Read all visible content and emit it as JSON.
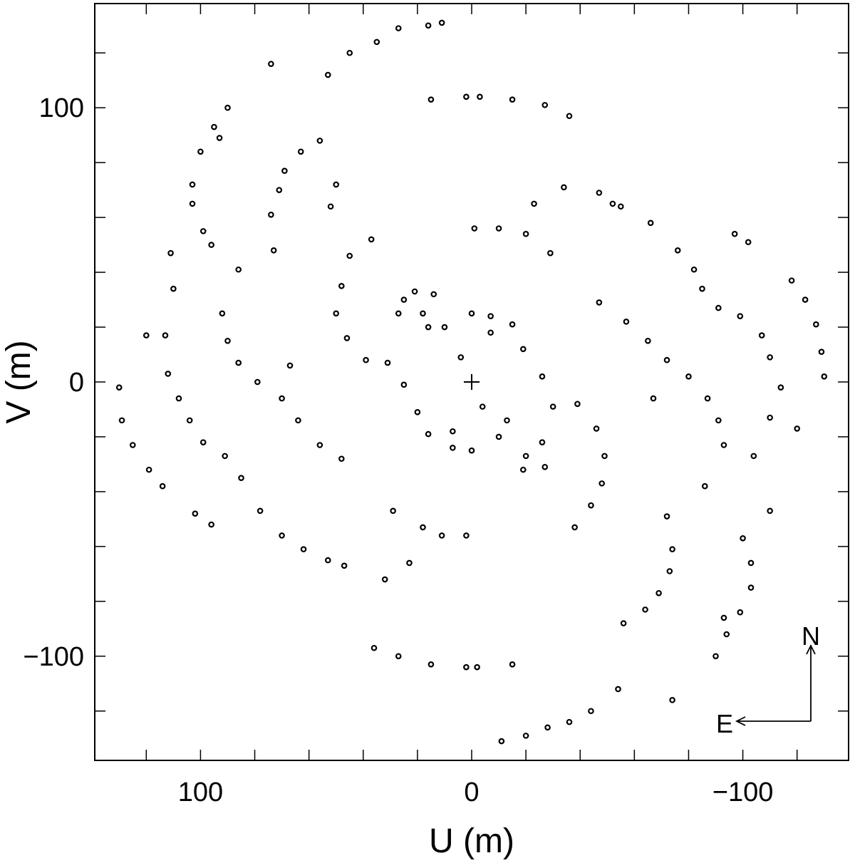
{
  "chart_data": {
    "type": "scatter",
    "xlabel": "U (m)",
    "ylabel": "V (m)",
    "color": "#000000",
    "xlim": [
      139,
      -139
    ],
    "ylim": [
      -138,
      138
    ],
    "xticks": [
      100,
      0,
      {
        "value": -100,
        "label": "−100"
      }
    ],
    "yticks": [
      {
        "value": -100,
        "label": "−100"
      },
      0,
      100
    ],
    "xminor_ticks": [
      120,
      80,
      60,
      40,
      20,
      -20,
      -40,
      -60,
      -80,
      -120
    ],
    "yminor_ticks": [
      -120,
      -80,
      -60,
      -40,
      -20,
      20,
      40,
      60,
      80,
      120
    ],
    "annotations": [
      "N",
      "E"
    ],
    "x": [
      53,
      45,
      35,
      27,
      16,
      11,
      -11,
      -20,
      -28,
      -36,
      -44,
      -54,
      74,
      -74,
      15,
      2,
      -3,
      -15,
      -27,
      -36,
      36,
      27,
      15,
      2,
      -2,
      -15,
      90,
      95,
      100,
      103,
      103,
      99,
      96,
      -100,
      -103,
      -103,
      -99,
      -94,
      -90,
      93,
      -93,
      73,
      74,
      71,
      69,
      63,
      56,
      -56,
      -64,
      -69,
      -73,
      -74,
      -72,
      -130,
      -129,
      -127,
      -123,
      -118,
      -102,
      -97,
      130,
      129,
      125,
      119,
      114,
      102,
      96,
      111,
      -110,
      113,
      112,
      108,
      104,
      99,
      91,
      -114,
      -110,
      -107,
      -99,
      -91,
      86,
      92,
      90,
      86,
      79,
      70,
      64,
      56,
      48,
      -47,
      -57,
      -65,
      -72,
      -80,
      -87,
      -91,
      -93,
      85,
      78,
      70,
      62,
      53,
      47,
      -47,
      -55,
      -66,
      -76,
      -82,
      -85,
      37,
      45,
      48,
      50,
      46,
      39,
      -39,
      -46,
      -49,
      -48,
      -44,
      -38,
      -1,
      -10,
      -20,
      -29,
      29,
      18,
      11,
      2,
      -23,
      -34,
      -52,
      23,
      32,
      27,
      25,
      21,
      14,
      18,
      16,
      10,
      4,
      -4,
      -10,
      -13,
      -20,
      -27,
      -26,
      -19,
      -7,
      -15,
      -19,
      -26,
      -30,
      7,
      16,
      20,
      25,
      31,
      0,
      0,
      -7,
      7,
      67,
      -67,
      -86,
      -104,
      -110,
      -120,
      110,
      120,
      52,
      50
    ],
    "y": [
      112,
      120,
      124,
      129,
      130,
      131,
      -131,
      -129,
      -126,
      -124,
      -120,
      -112,
      116,
      -116,
      103,
      104,
      104,
      103,
      101,
      97,
      -97,
      -100,
      -103,
      -104,
      -104,
      -103,
      100,
      93,
      84,
      72,
      65,
      55,
      50,
      -57,
      -66,
      -75,
      -84,
      -92,
      -100,
      89,
      -86,
      48,
      61,
      70,
      77,
      84,
      88,
      -88,
      -83,
      -77,
      -69,
      -61,
      -49,
      2,
      11,
      21,
      30,
      37,
      51,
      54,
      -2,
      -14,
      -23,
      -32,
      -38,
      -48,
      -52,
      47,
      -47,
      17,
      3,
      -6,
      -14,
      -22,
      -27,
      -2,
      9,
      17,
      24,
      27,
      41,
      25,
      15,
      7,
      0,
      -6,
      -14,
      -23,
      -28,
      29,
      22,
      15,
      8,
      2,
      -6,
      -14,
      -23,
      -35,
      -47,
      -56,
      -61,
      -65,
      -67,
      69,
      64,
      58,
      48,
      41,
      34,
      52,
      46,
      35,
      25,
      16,
      8,
      -8,
      -17,
      -27,
      -37,
      -45,
      -53,
      56,
      56,
      54,
      47,
      -47,
      -53,
      -56,
      -56,
      65,
      71,
      65,
      -66,
      -72,
      25,
      30,
      33,
      32,
      25,
      20,
      20,
      9,
      -9,
      -20,
      -14,
      -27,
      -31,
      -22,
      -32,
      24,
      21,
      12,
      2,
      -9,
      -24,
      -19,
      -11,
      -1,
      7,
      25,
      -25,
      18,
      -18,
      6,
      -6,
      -38,
      -27,
      -13,
      -17,
      34,
      17,
      64,
      72
    ]
  }
}
